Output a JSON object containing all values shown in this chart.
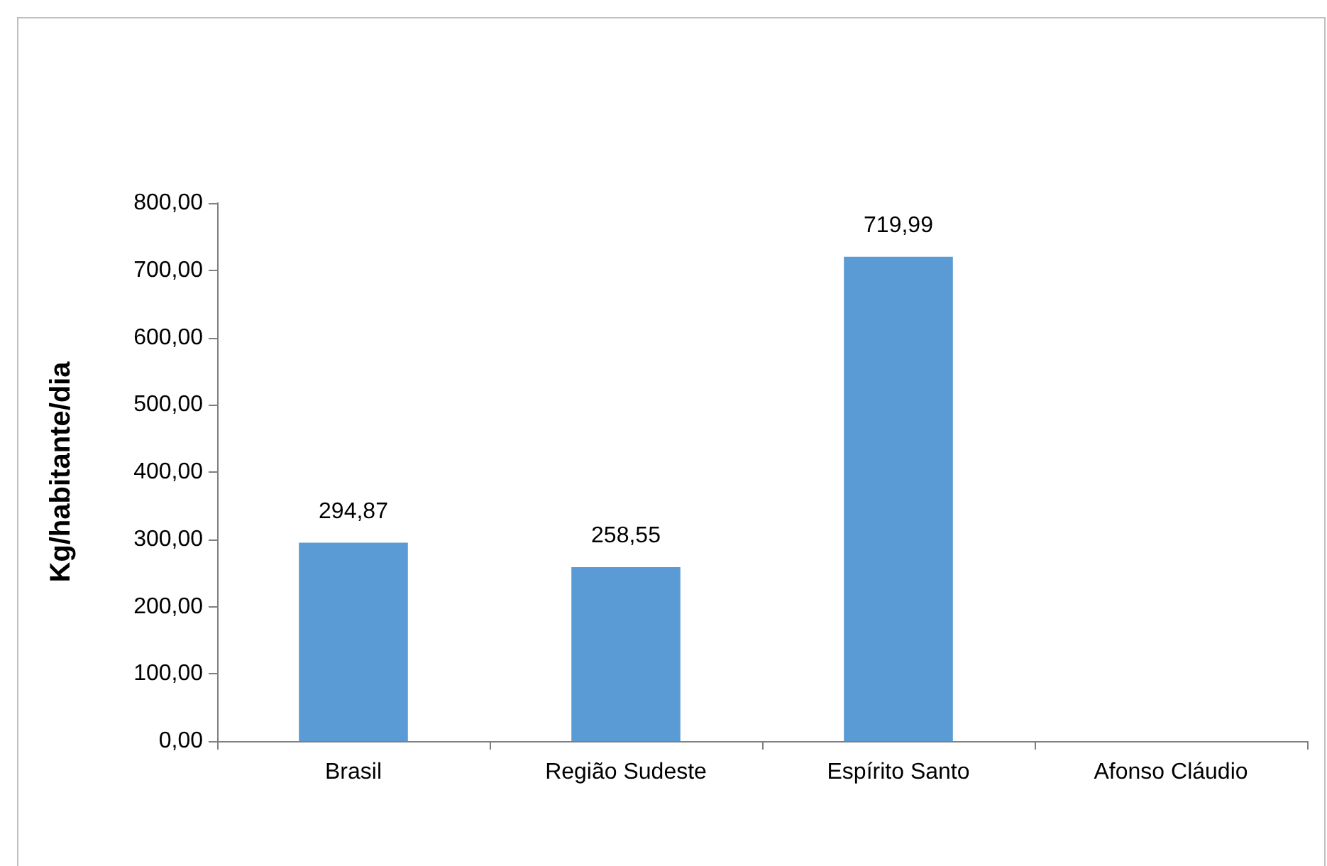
{
  "chart_data": {
    "type": "bar",
    "ylabel": "Kg/habitante/dia",
    "categories": [
      "Brasil",
      "Região Sudeste",
      "Espírito Santo",
      "Afonso Cláudio"
    ],
    "values": [
      294.87,
      258.55,
      719.99,
      null
    ],
    "value_labels": [
      "294,87",
      "258,55",
      "719,99",
      null
    ],
    "color": "#5b9bd5",
    "ylim": [
      0,
      800
    ],
    "yticks": [
      {
        "value": 0,
        "label": "0,00"
      },
      {
        "value": 100,
        "label": "100,00"
      },
      {
        "value": 200,
        "label": "200,00"
      },
      {
        "value": 300,
        "label": "300,00"
      },
      {
        "value": 400,
        "label": "400,00"
      },
      {
        "value": 500,
        "label": "500,00"
      },
      {
        "value": 600,
        "label": "600,00"
      },
      {
        "value": 700,
        "label": "700,00"
      },
      {
        "value": 800,
        "label": "800,00"
      }
    ],
    "grid": false
  }
}
